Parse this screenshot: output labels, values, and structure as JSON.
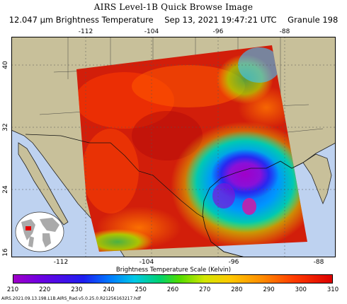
{
  "title": "AIRS Level-1B Quick Browse Image",
  "subtitle": {
    "product": "12.047 μm Brightness Temperature",
    "datetime": "Sep 13, 2021 19:47:21 UTC",
    "granule": "Granule 198"
  },
  "lon_ticks_top": [
    "-112",
    "-104",
    "-96",
    "-88"
  ],
  "lon_ticks_bottom": [
    "-112",
    "-104",
    "-96",
    "-88"
  ],
  "lat_ticks": [
    "40",
    "32",
    "24",
    "16"
  ],
  "scale": {
    "title": "Brightness Temperature Scale (Kelvin)",
    "labels": [
      "210",
      "220",
      "230",
      "240",
      "250",
      "260",
      "270",
      "280",
      "290",
      "300",
      "310"
    ],
    "min": 210,
    "max": 310
  },
  "footer": "AIRS.2021.09.13.198.L1B.AIRS_Rad.v5.0.25.0.R21256163217.hdf",
  "colors": {
    "land": "#c8c09a",
    "ocean": "#bed2f0",
    "warm": "#d21e0a",
    "cold": "#a000c8"
  }
}
